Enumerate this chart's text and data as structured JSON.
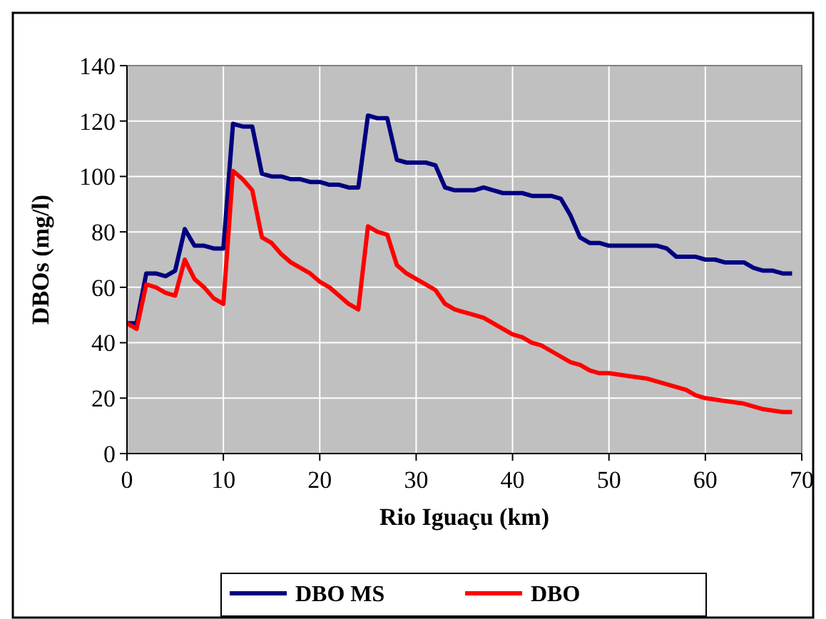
{
  "chart_data": {
    "type": "line",
    "xlabel": "Rio Iguaçu (km)",
    "ylabel": "DBOs (mg/l)",
    "xlim": [
      0,
      70
    ],
    "xticks": [
      0,
      10,
      20,
      30,
      40,
      50,
      60,
      70
    ],
    "ylim": [
      0,
      140
    ],
    "yticks": [
      0,
      20,
      40,
      60,
      80,
      100,
      120,
      140
    ],
    "grid": true,
    "legend": "bottom",
    "marker": "none",
    "line_style": "solid",
    "series": [
      {
        "name": "DBO MS",
        "color": "#000080",
        "x": [
          0,
          1,
          2,
          3,
          4,
          5,
          6,
          7,
          8,
          9,
          10,
          11,
          12,
          13,
          14,
          15,
          16,
          17,
          18,
          19,
          20,
          21,
          22,
          23,
          24,
          25,
          26,
          27,
          28,
          29,
          30,
          31,
          32,
          33,
          34,
          35,
          36,
          37,
          38,
          39,
          40,
          41,
          42,
          43,
          44,
          45,
          46,
          47,
          48,
          49,
          50,
          55,
          56,
          57,
          58,
          59,
          60,
          61,
          62,
          63,
          64,
          65,
          66,
          67,
          68,
          69
        ],
        "values": [
          47,
          47,
          65,
          65,
          64,
          66,
          81,
          75,
          75,
          74,
          74,
          119,
          118,
          118,
          101,
          100,
          100,
          99,
          99,
          98,
          98,
          97,
          97,
          96,
          96,
          122,
          121,
          121,
          106,
          105,
          105,
          105,
          104,
          96,
          95,
          95,
          95,
          96,
          95,
          94,
          94,
          94,
          93,
          93,
          93,
          92,
          86,
          78,
          76,
          76,
          75,
          75,
          74,
          71,
          71,
          71,
          70,
          70,
          69,
          69,
          69,
          67,
          66,
          66,
          65,
          65
        ]
      },
      {
        "name": "DBO",
        "color": "#ff0000",
        "x": [
          0,
          1,
          2,
          3,
          4,
          5,
          6,
          7,
          8,
          9,
          10,
          11,
          12,
          13,
          14,
          15,
          16,
          17,
          18,
          19,
          20,
          21,
          22,
          23,
          24,
          25,
          26,
          27,
          28,
          29,
          30,
          31,
          32,
          33,
          34,
          35,
          36,
          37,
          38,
          39,
          40,
          41,
          42,
          43,
          44,
          45,
          46,
          47,
          48,
          49,
          50,
          52,
          54,
          56,
          58,
          59,
          60,
          62,
          64,
          66,
          68,
          69
        ],
        "values": [
          47,
          45,
          61,
          60,
          58,
          57,
          70,
          63,
          60,
          56,
          54,
          102,
          99,
          95,
          78,
          76,
          72,
          69,
          67,
          65,
          62,
          60,
          57,
          54,
          52,
          82,
          80,
          79,
          68,
          65,
          63,
          61,
          59,
          54,
          52,
          51,
          50,
          49,
          47,
          45,
          43,
          42,
          40,
          39,
          37,
          35,
          33,
          32,
          30,
          29,
          29,
          28,
          27,
          25,
          23,
          21,
          20,
          19,
          18,
          16,
          15,
          15
        ]
      }
    ]
  }
}
